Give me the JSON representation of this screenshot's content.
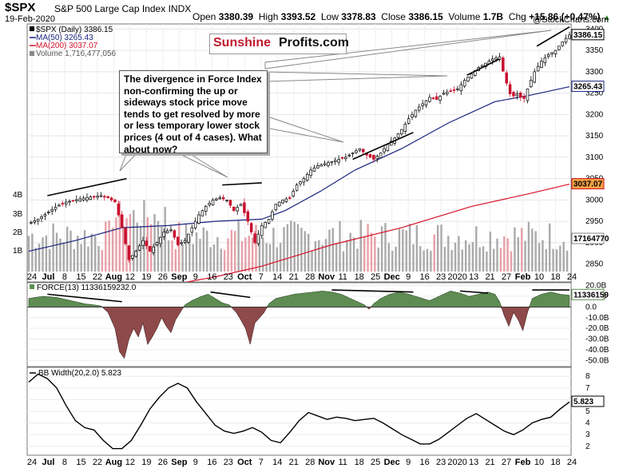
{
  "header": {
    "symbol": "$SPX",
    "name": "S&P 500 Large Cap Index",
    "exchange": "INDX",
    "date": "19-Feb-2020",
    "open_label": "Open",
    "open": "3380.39",
    "high_label": "High",
    "high": "3393.52",
    "low_label": "Low",
    "low": "3378.83",
    "close_label": "Close",
    "close": "3386.15",
    "volume_label": "Volume",
    "volume": "1.7B",
    "chg_label": "Chg",
    "chg": "+15.86 (+0.47%)",
    "chg_arrow": "▲",
    "copyright": "@StockCharts.com"
  },
  "legend": {
    "price": "$SPX (Daily) 3386.15",
    "ma50": "MA(50) 3265.43",
    "ma200": "MA(200) 3037.07",
    "volume": "Volume 1,716,477,056",
    "force": "FORCE(13) 11336159232.0",
    "bbw": "BB Width(20,2.0) 5.823"
  },
  "logo": {
    "part1": "Sunshine",
    "part2": "Profits.com"
  },
  "annotation": "The divergence in Force Index non-confirming the up or sideways stock price move tends to get resolved by more or less temporary lower stock prices (4 out of 4 cases). What about now?",
  "colors": {
    "up": "#000000",
    "down": "#c8102e",
    "ma50": "#1a237e",
    "ma200": "#d6122a",
    "vol_up": "#aaaaaa",
    "vol_down": "#e8a0a8",
    "force_pos": "#5e8c52",
    "force_neg": "#8e4a4a",
    "last_price_bg": "#ffffff",
    "ma50_tag": "#ffffff",
    "ma200_tag": "#f0a040"
  },
  "chart_data": [
    {
      "type": "candlestick",
      "title": "$SPX S&P 500 Large Cap Index",
      "y_ticks": [
        2850,
        2900,
        2950,
        3000,
        3050,
        3100,
        3150,
        3200,
        3250,
        3300,
        3350,
        3400
      ],
      "ylim": [
        2810,
        3410
      ],
      "volume_ticks": [
        "1B",
        "2B",
        "3B",
        "4B"
      ],
      "x_labels": [
        "24",
        "Jul",
        "8",
        "15",
        "22",
        "Aug",
        "12",
        "19",
        "26",
        "Sep",
        "9",
        "16",
        "23",
        "Oct",
        "7",
        "14",
        "21",
        "28",
        "Nov",
        "11",
        "18",
        "25",
        "Dec",
        "9",
        "16",
        "23",
        "2020",
        "13",
        "21",
        "27",
        "Feb",
        "10",
        "18",
        "24"
      ],
      "last_price_tag": "3386.15",
      "ma50_tag": "3265.43",
      "ma200_tag": "3037.07",
      "volume_tag": "17164770",
      "close_path": [
        [
          0,
          2945
        ],
        [
          4,
          2955
        ],
        [
          8,
          2970
        ],
        [
          12,
          2985
        ],
        [
          16,
          2995
        ],
        [
          20,
          3000
        ],
        [
          24,
          3005
        ],
        [
          28,
          3008
        ],
        [
          31,
          3010
        ],
        [
          34,
          3005
        ],
        [
          37,
          2995
        ],
        [
          40,
          2935
        ],
        [
          43,
          2860
        ],
        [
          46,
          2880
        ],
        [
          49,
          2905
        ],
        [
          52,
          2880
        ],
        [
          55,
          2900
        ],
        [
          58,
          2925
        ],
        [
          61,
          2930
        ],
        [
          64,
          2895
        ],
        [
          67,
          2905
        ],
        [
          70,
          2935
        ],
        [
          73,
          2965
        ],
        [
          76,
          2985
        ],
        [
          79,
          3000
        ],
        [
          82,
          3005
        ],
        [
          85,
          3000
        ],
        [
          88,
          2975
        ],
        [
          91,
          2990
        ],
        [
          94,
          2950
        ],
        [
          97,
          2900
        ],
        [
          100,
          2940
        ],
        [
          103,
          2955
        ],
        [
          106,
          2990
        ],
        [
          109,
          3000
        ],
        [
          112,
          3005
        ],
        [
          115,
          3035
        ],
        [
          118,
          3050
        ],
        [
          121,
          3070
        ],
        [
          124,
          3080
        ],
        [
          127,
          3085
        ],
        [
          130,
          3090
        ],
        [
          133,
          3095
        ],
        [
          136,
          3100
        ],
        [
          139,
          3110
        ],
        [
          142,
          3120
        ],
        [
          145,
          3105
        ],
        [
          148,
          3095
        ],
        [
          151,
          3110
        ],
        [
          154,
          3130
        ],
        [
          157,
          3145
        ],
        [
          160,
          3165
        ],
        [
          163,
          3190
        ],
        [
          166,
          3210
        ],
        [
          169,
          3225
        ],
        [
          172,
          3240
        ],
        [
          175,
          3235
        ],
        [
          178,
          3250
        ],
        [
          181,
          3255
        ],
        [
          184,
          3260
        ],
        [
          187,
          3280
        ],
        [
          190,
          3295
        ],
        [
          193,
          3310
        ],
        [
          196,
          3320
        ],
        [
          199,
          3330
        ],
        [
          202,
          3335
        ],
        [
          204,
          3290
        ],
        [
          207,
          3240
        ],
        [
          210,
          3250
        ],
        [
          212,
          3230
        ],
        [
          214,
          3260
        ],
        [
          217,
          3300
        ],
        [
          220,
          3325
        ],
        [
          223,
          3340
        ],
        [
          226,
          3350
        ],
        [
          229,
          3370
        ],
        [
          232,
          3386
        ]
      ],
      "ma50_path": [
        [
          0,
          2880
        ],
        [
          20,
          2905
        ],
        [
          40,
          2935
        ],
        [
          60,
          2940
        ],
        [
          80,
          2950
        ],
        [
          100,
          2955
        ],
        [
          110,
          2975
        ],
        [
          125,
          3020
        ],
        [
          140,
          3070
        ],
        [
          160,
          3120
        ],
        [
          180,
          3180
        ],
        [
          200,
          3230
        ],
        [
          215,
          3245
        ],
        [
          232,
          3265
        ]
      ],
      "ma200_path": [
        [
          0,
          2750
        ],
        [
          50,
          2790
        ],
        [
          80,
          2820
        ],
        [
          100,
          2845
        ],
        [
          130,
          2895
        ],
        [
          160,
          2935
        ],
        [
          190,
          2985
        ],
        [
          215,
          3015
        ],
        [
          232,
          3037
        ]
      ]
    },
    {
      "type": "area",
      "title": "FORCE(13)",
      "y_ticks": [
        "20.0B",
        "10.0B",
        "0.0",
        "-10.0B",
        "-20.0B",
        "-30.0B",
        "-40.0B",
        "-50.0B"
      ],
      "ylim_b": [
        -55,
        22
      ],
      "last_tag": "11336159",
      "path_b": [
        [
          0,
          8
        ],
        [
          6,
          10
        ],
        [
          12,
          9
        ],
        [
          18,
          6
        ],
        [
          24,
          3
        ],
        [
          28,
          2
        ],
        [
          31,
          1
        ],
        [
          34,
          -5
        ],
        [
          37,
          -20
        ],
        [
          39,
          -42
        ],
        [
          41,
          -48
        ],
        [
          43,
          -30
        ],
        [
          45,
          -20
        ],
        [
          47,
          -28
        ],
        [
          49,
          -15
        ],
        [
          51,
          -35
        ],
        [
          53,
          -28
        ],
        [
          55,
          -20
        ],
        [
          57,
          -10
        ],
        [
          59,
          -18
        ],
        [
          61,
          -24
        ],
        [
          63,
          -12
        ],
        [
          65,
          -5
        ],
        [
          67,
          2
        ],
        [
          70,
          6
        ],
        [
          74,
          10
        ],
        [
          77,
          12
        ],
        [
          80,
          8
        ],
        [
          83,
          4
        ],
        [
          86,
          2
        ],
        [
          89,
          -5
        ],
        [
          91,
          -12
        ],
        [
          93,
          -20
        ],
        [
          95,
          -35
        ],
        [
          97,
          -15
        ],
        [
          99,
          -10
        ],
        [
          101,
          -5
        ],
        [
          103,
          3
        ],
        [
          106,
          8
        ],
        [
          110,
          10
        ],
        [
          114,
          12
        ],
        [
          118,
          13
        ],
        [
          122,
          14
        ],
        [
          126,
          15
        ],
        [
          130,
          14
        ],
        [
          134,
          12
        ],
        [
          138,
          8
        ],
        [
          141,
          5
        ],
        [
          144,
          2
        ],
        [
          146,
          -2
        ],
        [
          148,
          3
        ],
        [
          151,
          8
        ],
        [
          155,
          12
        ],
        [
          159,
          14
        ],
        [
          163,
          12
        ],
        [
          166,
          10
        ],
        [
          169,
          8
        ],
        [
          172,
          6
        ],
        [
          175,
          9
        ],
        [
          178,
          12
        ],
        [
          181,
          15
        ],
        [
          185,
          13
        ],
        [
          189,
          10
        ],
        [
          193,
          12
        ],
        [
          197,
          14
        ],
        [
          200,
          12
        ],
        [
          202,
          5
        ],
        [
          204,
          -8
        ],
        [
          206,
          -18
        ],
        [
          208,
          -5
        ],
        [
          210,
          -12
        ],
        [
          212,
          -22
        ],
        [
          214,
          -5
        ],
        [
          216,
          8
        ],
        [
          220,
          12
        ],
        [
          224,
          14
        ],
        [
          228,
          12
        ],
        [
          232,
          11
        ]
      ]
    },
    {
      "type": "line",
      "title": "BB Width(20,2.0)",
      "y_ticks": [
        2,
        3,
        4,
        5,
        6,
        7,
        8
      ],
      "ylim": [
        1.3,
        8.7
      ],
      "last_tag": "5.823",
      "path": [
        [
          0,
          7.5
        ],
        [
          4,
          8.2
        ],
        [
          8,
          7.8
        ],
        [
          12,
          7.0
        ],
        [
          16,
          5.5
        ],
        [
          20,
          4.2
        ],
        [
          24,
          3.6
        ],
        [
          28,
          3.4
        ],
        [
          32,
          2.5
        ],
        [
          36,
          1.8
        ],
        [
          40,
          1.8
        ],
        [
          44,
          2.5
        ],
        [
          48,
          3.8
        ],
        [
          52,
          5.2
        ],
        [
          56,
          6.2
        ],
        [
          60,
          7.0
        ],
        [
          64,
          7.4
        ],
        [
          68,
          7.0
        ],
        [
          72,
          5.8
        ],
        [
          76,
          4.8
        ],
        [
          80,
          3.8
        ],
        [
          84,
          3.3
        ],
        [
          88,
          3.1
        ],
        [
          92,
          3.3
        ],
        [
          96,
          3.6
        ],
        [
          100,
          3.2
        ],
        [
          104,
          2.5
        ],
        [
          108,
          2.3
        ],
        [
          112,
          3.2
        ],
        [
          116,
          4.2
        ],
        [
          120,
          4.9
        ],
        [
          124,
          4.6
        ],
        [
          128,
          4.3
        ],
        [
          132,
          4.5
        ],
        [
          136,
          4.4
        ],
        [
          140,
          4.2
        ],
        [
          144,
          4.3
        ],
        [
          148,
          4.4
        ],
        [
          152,
          4.0
        ],
        [
          156,
          3.5
        ],
        [
          160,
          3.0
        ],
        [
          164,
          2.6
        ],
        [
          168,
          2.2
        ],
        [
          172,
          2.2
        ],
        [
          176,
          2.6
        ],
        [
          180,
          3.2
        ],
        [
          184,
          3.8
        ],
        [
          188,
          4.4
        ],
        [
          192,
          4.8
        ],
        [
          196,
          4.3
        ],
        [
          200,
          3.8
        ],
        [
          204,
          3.3
        ],
        [
          208,
          3.0
        ],
        [
          212,
          3.4
        ],
        [
          216,
          4.0
        ],
        [
          220,
          4.3
        ],
        [
          224,
          4.5
        ],
        [
          228,
          5.2
        ],
        [
          232,
          5.8
        ]
      ]
    }
  ]
}
